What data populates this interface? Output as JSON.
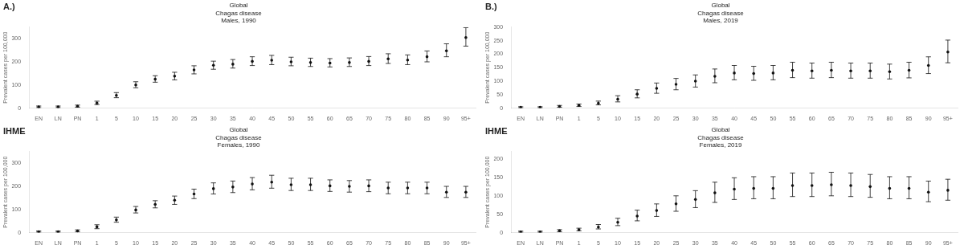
{
  "chart_data": [
    {
      "type": "scatter",
      "title": "Global\nChagas disease\nMales, 1990",
      "categories": [
        "EN",
        "LN",
        "PN",
        "1",
        "5",
        "10",
        "15",
        "20",
        "25",
        "30",
        "35",
        "40",
        "45",
        "50",
        "55",
        "60",
        "65",
        "70",
        "75",
        "80",
        "85",
        "90",
        "95+"
      ],
      "values": [
        5,
        5,
        8,
        22,
        55,
        100,
        125,
        138,
        165,
        185,
        190,
        202,
        207,
        200,
        197,
        195,
        197,
        202,
        213,
        208,
        222,
        248,
        305
      ],
      "lower": [
        2,
        2,
        4,
        15,
        45,
        88,
        112,
        122,
        148,
        168,
        173,
        184,
        188,
        183,
        180,
        178,
        180,
        184,
        193,
        188,
        200,
        222,
        268
      ],
      "upper": [
        9,
        9,
        13,
        30,
        67,
        114,
        140,
        155,
        183,
        203,
        210,
        222,
        228,
        220,
        216,
        214,
        217,
        223,
        235,
        230,
        247,
        278,
        348
      ],
      "ylabel": "Prevalent cases per 100,000",
      "ylim": [
        0,
        350
      ],
      "yticks": [
        0,
        100,
        200,
        300
      ],
      "color": "#111111",
      "grid": false,
      "annotations": [
        "A.)"
      ]
    },
    {
      "type": "scatter",
      "title": "Global\nChagas disease\nMales, 2019",
      "categories": [
        "EN",
        "LN",
        "PN",
        "1",
        "5",
        "10",
        "15",
        "20",
        "25",
        "30",
        "35",
        "40",
        "45",
        "50",
        "55",
        "60",
        "65",
        "70",
        "75",
        "80",
        "85",
        "90",
        "95+"
      ],
      "values": [
        3,
        3,
        6,
        10,
        18,
        33,
        52,
        73,
        88,
        100,
        118,
        130,
        128,
        130,
        140,
        138,
        140,
        138,
        138,
        135,
        140,
        158,
        208
      ],
      "lower": [
        1,
        1,
        3,
        6,
        12,
        23,
        38,
        55,
        68,
        78,
        94,
        105,
        103,
        105,
        113,
        111,
        113,
        111,
        111,
        108,
        112,
        128,
        168
      ],
      "upper": [
        5,
        5,
        10,
        15,
        26,
        46,
        68,
        93,
        110,
        123,
        145,
        158,
        155,
        158,
        170,
        167,
        170,
        167,
        167,
        163,
        170,
        190,
        252
      ],
      "ylabel": "Prevalent cases per 100,000",
      "ylim": [
        0,
        300
      ],
      "yticks": [
        0,
        50,
        100,
        150,
        200,
        250,
        300
      ],
      "color": "#111111",
      "grid": false,
      "annotations": [
        "B.)"
      ]
    },
    {
      "type": "scatter",
      "title": "Global\nChagas disease\nFemales, 1990",
      "categories": [
        "EN",
        "LN",
        "PN",
        "1",
        "5",
        "10",
        "15",
        "20",
        "25",
        "30",
        "35",
        "40",
        "45",
        "50",
        "55",
        "60",
        "65",
        "70",
        "75",
        "80",
        "85",
        "90",
        "95+"
      ],
      "values": [
        4,
        4,
        7,
        25,
        55,
        98,
        122,
        140,
        167,
        190,
        197,
        210,
        218,
        207,
        207,
        202,
        200,
        202,
        193,
        193,
        193,
        175,
        175
      ],
      "lower": [
        2,
        2,
        3,
        17,
        45,
        85,
        107,
        122,
        147,
        167,
        173,
        185,
        192,
        182,
        182,
        178,
        175,
        177,
        168,
        168,
        168,
        152,
        152
      ],
      "upper": [
        7,
        7,
        12,
        34,
        67,
        113,
        138,
        158,
        188,
        215,
        223,
        238,
        248,
        235,
        235,
        228,
        225,
        228,
        218,
        218,
        218,
        200,
        200
      ],
      "ylabel": "Prevalent cases per 100,000",
      "ylim": [
        0,
        350
      ],
      "yticks": [
        0,
        100,
        200,
        300
      ],
      "color": "#111111",
      "grid": false,
      "annotations": [
        "IHME"
      ]
    },
    {
      "type": "scatter",
      "title": "Global\nChagas disease\nFemales, 2019",
      "categories": [
        "EN",
        "LN",
        "PN",
        "1",
        "5",
        "10",
        "15",
        "20",
        "25",
        "30",
        "35",
        "40",
        "45",
        "50",
        "55",
        "60",
        "65",
        "70",
        "75",
        "80",
        "85",
        "90",
        "95+"
      ],
      "values": [
        2,
        2,
        5,
        8,
        15,
        28,
        45,
        60,
        78,
        90,
        108,
        118,
        120,
        120,
        128,
        128,
        130,
        128,
        125,
        120,
        120,
        110,
        115
      ],
      "lower": [
        1,
        1,
        2,
        5,
        10,
        19,
        32,
        44,
        58,
        68,
        82,
        90,
        92,
        92,
        98,
        98,
        100,
        98,
        96,
        92,
        92,
        84,
        88
      ],
      "upper": [
        4,
        4,
        8,
        12,
        22,
        39,
        61,
        78,
        100,
        114,
        137,
        149,
        152,
        152,
        162,
        162,
        164,
        162,
        158,
        152,
        152,
        140,
        145
      ],
      "ylabel": "Prevalent cases per 100,000",
      "ylim": [
        0,
        220
      ],
      "yticks": [
        0,
        50,
        100,
        150,
        200
      ],
      "color": "#111111",
      "grid": false,
      "annotations": [
        "IHME"
      ]
    }
  ]
}
